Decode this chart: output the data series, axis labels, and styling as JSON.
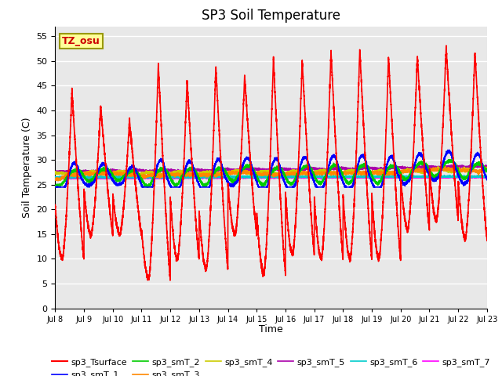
{
  "title": "SP3 Soil Temperature",
  "xlabel": "Time",
  "ylabel": "Soil Temperature (C)",
  "ylim": [
    0,
    57
  ],
  "yticks": [
    0,
    5,
    10,
    15,
    20,
    25,
    30,
    35,
    40,
    45,
    50,
    55
  ],
  "start_day": 8,
  "end_day": 23,
  "annotation": "TZ_osu",
  "annotation_color": "#cc0000",
  "annotation_bg": "#ffff99",
  "annotation_border": "#999900",
  "series_colors": {
    "sp3_Tsurface": "#ff0000",
    "sp3_smT_1": "#0000ff",
    "sp3_smT_2": "#00cc00",
    "sp3_smT_3": "#ff8800",
    "sp3_smT_4": "#cccc00",
    "sp3_smT_5": "#aa00aa",
    "sp3_smT_6": "#00cccc",
    "sp3_smT_7": "#ff00ff"
  },
  "surface_peaks": [
    44,
    41,
    38,
    49.5,
    46,
    49,
    47,
    50.5,
    50,
    52,
    52.5,
    51,
    51,
    53,
    52
  ],
  "surface_mins": [
    10,
    15,
    15,
    6,
    10,
    8,
    15,
    7,
    11,
    10,
    10,
    10,
    16,
    18,
    14
  ],
  "background_color": "#e8e8e8",
  "grid_color": "#ffffff",
  "title_fontsize": 12,
  "label_fontsize": 9,
  "tick_fontsize": 8
}
